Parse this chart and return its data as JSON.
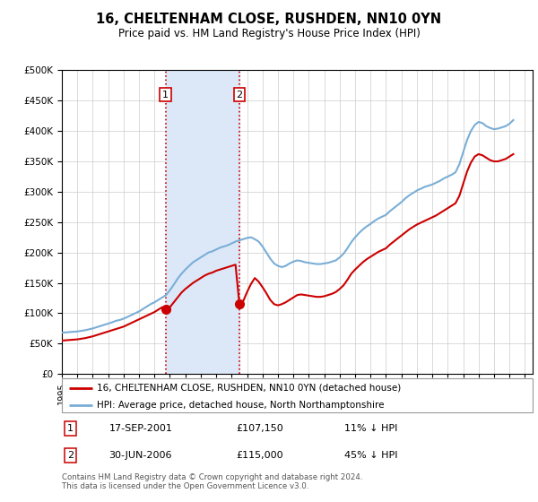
{
  "title": "16, CHELTENHAM CLOSE, RUSHDEN, NN10 0YN",
  "subtitle": "Price paid vs. HM Land Registry's House Price Index (HPI)",
  "hpi_label": "HPI: Average price, detached house, North Northamptonshire",
  "property_label": "16, CHELTENHAM CLOSE, RUSHDEN, NN10 0YN (detached house)",
  "footer": "Contains HM Land Registry data © Crown copyright and database right 2024.\nThis data is licensed under the Open Government Licence v3.0.",
  "transactions": [
    {
      "num": "1",
      "date": "17-SEP-2001",
      "price": "£107,150",
      "hpi_rel": "11% ↓ HPI",
      "year": 2001.72
    },
    {
      "num": "2",
      "date": "30-JUN-2006",
      "price": "£115,000",
      "hpi_rel": "45% ↓ HPI",
      "year": 2006.5
    }
  ],
  "transaction_prices": [
    107150,
    115000
  ],
  "shade_x0": 2001.72,
  "shade_x1": 2006.5,
  "shade_color": "#dce8f8",
  "hpi_color": "#7aaed6",
  "price_color": "#cc0000",
  "vline_color": "#cc0000",
  "ylim": [
    0,
    500000
  ],
  "yticks": [
    0,
    50000,
    100000,
    150000,
    200000,
    250000,
    300000,
    350000,
    400000,
    450000,
    500000
  ],
  "xlim": [
    1995.0,
    2025.5
  ],
  "xticks": [
    1995,
    1996,
    1997,
    1998,
    1999,
    2000,
    2001,
    2002,
    2003,
    2004,
    2005,
    2006,
    2007,
    2008,
    2009,
    2010,
    2011,
    2012,
    2013,
    2014,
    2015,
    2016,
    2017,
    2018,
    2019,
    2020,
    2021,
    2022,
    2023,
    2024,
    2025
  ],
  "hpi_data_x": [
    1995.0,
    1995.25,
    1995.5,
    1995.75,
    1996.0,
    1996.25,
    1996.5,
    1996.75,
    1997.0,
    1997.25,
    1997.5,
    1997.75,
    1998.0,
    1998.25,
    1998.5,
    1998.75,
    1999.0,
    1999.25,
    1999.5,
    1999.75,
    2000.0,
    2000.25,
    2000.5,
    2000.75,
    2001.0,
    2001.25,
    2001.5,
    2001.75,
    2002.0,
    2002.25,
    2002.5,
    2002.75,
    2003.0,
    2003.25,
    2003.5,
    2003.75,
    2004.0,
    2004.25,
    2004.5,
    2004.75,
    2005.0,
    2005.25,
    2005.5,
    2005.75,
    2006.0,
    2006.25,
    2006.5,
    2006.75,
    2007.0,
    2007.25,
    2007.5,
    2007.75,
    2008.0,
    2008.25,
    2008.5,
    2008.75,
    2009.0,
    2009.25,
    2009.5,
    2009.75,
    2010.0,
    2010.25,
    2010.5,
    2010.75,
    2011.0,
    2011.25,
    2011.5,
    2011.75,
    2012.0,
    2012.25,
    2012.5,
    2012.75,
    2013.0,
    2013.25,
    2013.5,
    2013.75,
    2014.0,
    2014.25,
    2014.5,
    2014.75,
    2015.0,
    2015.25,
    2015.5,
    2015.75,
    2016.0,
    2016.25,
    2016.5,
    2016.75,
    2017.0,
    2017.25,
    2017.5,
    2017.75,
    2018.0,
    2018.25,
    2018.5,
    2018.75,
    2019.0,
    2019.25,
    2019.5,
    2019.75,
    2020.0,
    2020.25,
    2020.5,
    2020.75,
    2021.0,
    2021.25,
    2021.5,
    2021.75,
    2022.0,
    2022.25,
    2022.5,
    2022.75,
    2023.0,
    2023.25,
    2023.5,
    2023.75,
    2024.0,
    2024.25
  ],
  "hpi_data_y": [
    68000,
    68500,
    69000,
    69500,
    70000,
    71000,
    72000,
    73500,
    75000,
    77000,
    79000,
    81000,
    83000,
    85000,
    87500,
    89000,
    91000,
    94000,
    97000,
    100000,
    103000,
    107000,
    111000,
    115000,
    118000,
    122000,
    126000,
    130000,
    138000,
    147000,
    157000,
    165000,
    172000,
    178000,
    184000,
    188000,
    192000,
    196000,
    200000,
    202000,
    205000,
    208000,
    210000,
    212000,
    215000,
    218000,
    220000,
    222000,
    224000,
    225000,
    222000,
    218000,
    210000,
    200000,
    190000,
    182000,
    178000,
    176000,
    178000,
    182000,
    185000,
    187000,
    186000,
    184000,
    183000,
    182000,
    181000,
    181000,
    182000,
    183000,
    185000,
    187000,
    192000,
    198000,
    207000,
    217000,
    225000,
    232000,
    238000,
    243000,
    247000,
    252000,
    256000,
    259000,
    262000,
    268000,
    273000,
    278000,
    283000,
    289000,
    294000,
    298000,
    302000,
    305000,
    308000,
    310000,
    312000,
    315000,
    318000,
    322000,
    325000,
    328000,
    332000,
    345000,
    365000,
    385000,
    400000,
    410000,
    415000,
    413000,
    408000,
    405000,
    403000,
    404000,
    406000,
    408000,
    412000,
    418000
  ],
  "price_data_x": [
    1995.0,
    1995.25,
    1995.5,
    1995.75,
    1996.0,
    1996.25,
    1996.5,
    1996.75,
    1997.0,
    1997.25,
    1997.5,
    1997.75,
    1998.0,
    1998.25,
    1998.5,
    1998.75,
    1999.0,
    1999.25,
    1999.5,
    1999.75,
    2000.0,
    2000.25,
    2000.5,
    2000.75,
    2001.0,
    2001.25,
    2001.5,
    2001.75,
    2002.0,
    2002.25,
    2002.5,
    2002.75,
    2003.0,
    2003.25,
    2003.5,
    2003.75,
    2004.0,
    2004.25,
    2004.5,
    2004.75,
    2005.0,
    2005.25,
    2005.5,
    2005.75,
    2006.0,
    2006.25,
    2006.5,
    2006.75,
    2007.0,
    2007.25,
    2007.5,
    2007.75,
    2008.0,
    2008.25,
    2008.5,
    2008.75,
    2009.0,
    2009.25,
    2009.5,
    2009.75,
    2010.0,
    2010.25,
    2010.5,
    2010.75,
    2011.0,
    2011.25,
    2011.5,
    2011.75,
    2012.0,
    2012.25,
    2012.5,
    2012.75,
    2013.0,
    2013.25,
    2013.5,
    2013.75,
    2014.0,
    2014.25,
    2014.5,
    2014.75,
    2015.0,
    2015.25,
    2015.5,
    2015.75,
    2016.0,
    2016.25,
    2016.5,
    2016.75,
    2017.0,
    2017.25,
    2017.5,
    2017.75,
    2018.0,
    2018.25,
    2018.5,
    2018.75,
    2019.0,
    2019.25,
    2019.5,
    2019.75,
    2020.0,
    2020.25,
    2020.5,
    2020.75,
    2021.0,
    2021.25,
    2021.5,
    2021.75,
    2022.0,
    2022.25,
    2022.5,
    2022.75,
    2023.0,
    2023.25,
    2023.5,
    2023.75,
    2024.0,
    2024.25
  ],
  "price_data_y": [
    55000,
    55500,
    56000,
    56500,
    57000,
    58000,
    59000,
    60500,
    62000,
    64000,
    66000,
    68000,
    70000,
    72000,
    74000,
    76000,
    78000,
    81000,
    84000,
    87000,
    90000,
    93000,
    96000,
    99000,
    102000,
    106000,
    110000,
    107150,
    110000,
    118000,
    126000,
    134000,
    140000,
    145000,
    150000,
    154000,
    158000,
    162000,
    165000,
    167000,
    170000,
    172000,
    174000,
    176000,
    178000,
    180000,
    115000,
    120000,
    135000,
    148000,
    158000,
    152000,
    143000,
    133000,
    122000,
    115000,
    113000,
    115000,
    118000,
    122000,
    126000,
    130000,
    131000,
    130000,
    129000,
    128000,
    127000,
    127000,
    128000,
    130000,
    132000,
    135000,
    140000,
    146000,
    155000,
    165000,
    172000,
    178000,
    184000,
    189000,
    193000,
    197000,
    201000,
    204000,
    207000,
    213000,
    218000,
    223000,
    228000,
    233000,
    238000,
    242000,
    246000,
    249000,
    252000,
    255000,
    258000,
    261000,
    265000,
    269000,
    273000,
    277000,
    281000,
    293000,
    313000,
    333000,
    348000,
    358000,
    362000,
    360000,
    356000,
    352000,
    350000,
    350000,
    352000,
    354000,
    358000,
    362000
  ]
}
